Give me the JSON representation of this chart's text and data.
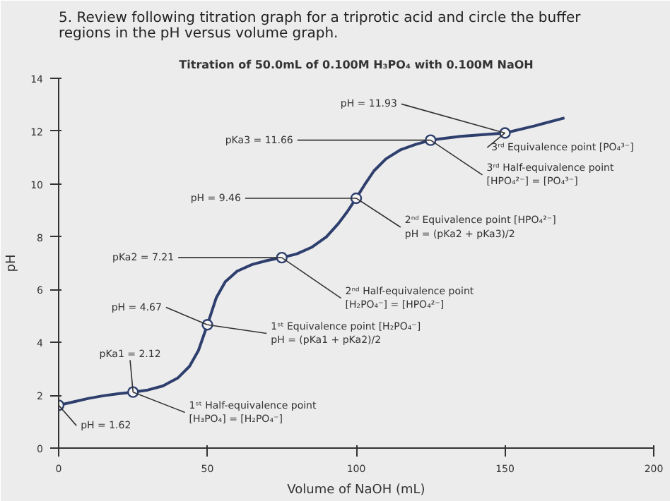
{
  "chart_data": {
    "type": "line",
    "title": "5. Review following titration graph for a triprotic acid and circle the buffer regions in the pH versus volume graph.",
    "subtitle": "Titration of 50.0mL of 0.100M H₃PO₄ with 0.100M NaOH",
    "xlabel": "Volume of NaOH (mL)",
    "ylabel": "pH",
    "xlim": [
      0,
      200
    ],
    "xticks": [
      0,
      50,
      100,
      150,
      200
    ],
    "ylim": [
      0,
      14
    ],
    "yticks": [
      0,
      2,
      4,
      6,
      8,
      10,
      12,
      14
    ],
    "grid": false,
    "series": [
      {
        "type": "line",
        "color": "#2e3f6e",
        "x": [
          0,
          5,
          10,
          15,
          20,
          25,
          30,
          35,
          40,
          44,
          47,
          50,
          53,
          56,
          60,
          65,
          70,
          75,
          80,
          85,
          90,
          94,
          97,
          100,
          103,
          106,
          110,
          115,
          120,
          125,
          135,
          150,
          160,
          170
        ],
        "values": [
          1.62,
          1.75,
          1.88,
          1.98,
          2.06,
          2.12,
          2.2,
          2.35,
          2.65,
          3.1,
          3.7,
          4.67,
          5.7,
          6.3,
          6.7,
          6.95,
          7.1,
          7.21,
          7.35,
          7.6,
          8.0,
          8.5,
          8.95,
          9.46,
          10.0,
          10.5,
          10.95,
          11.3,
          11.5,
          11.66,
          11.8,
          11.93,
          12.2,
          12.5
        ]
      },
      {
        "type": "scatter",
        "marker": "circle",
        "color": "#2e3f6e",
        "x": [
          0,
          25,
          50,
          75,
          100,
          125,
          150
        ],
        "values": [
          1.62,
          2.12,
          4.67,
          7.21,
          9.46,
          11.66,
          11.93
        ]
      }
    ],
    "annotations": [
      {
        "text": "pH = 1.62",
        "x": 0,
        "y": 1.62
      },
      {
        "text": "pKa1 = 2.12",
        "x": 25,
        "y": 2.12
      },
      {
        "text": "pH = 4.67",
        "x": 50,
        "y": 4.67
      },
      {
        "text": "pKa2 = 7.21",
        "x": 75,
        "y": 7.21
      },
      {
        "text": "pH = 9.46",
        "x": 100,
        "y": 9.46
      },
      {
        "text": "pKa3 = 11.66",
        "x": 125,
        "y": 11.66
      },
      {
        "text": "pH = 11.93",
        "x": 150,
        "y": 11.93
      },
      {
        "text": "1ˢᵗ Half-equivalence point\n[H₃PO₄] = [H₂PO₄⁻]",
        "x": 25,
        "y": 2.12
      },
      {
        "text": "1ˢᵗ Equivalence point [H₂PO₄⁻]\npH = (pKa1 + pKa2)/2",
        "x": 50,
        "y": 4.67
      },
      {
        "text": "2ⁿᵈ Half-equivalence point\n[H₂PO₄⁻] = [HPO₄²⁻]",
        "x": 75,
        "y": 7.21
      },
      {
        "text": "2ⁿᵈ Equivalence point [HPO₄²⁻]\npH = (pKa2 + pKa3)/2",
        "x": 100,
        "y": 9.46
      },
      {
        "text": "3ʳᵈ Half-equivalence point\n[HPO₄²⁻] = [PO₄³⁻]",
        "x": 125,
        "y": 11.66
      },
      {
        "text": "3ʳᵈ Equivalence point [PO₄³⁻]",
        "x": 150,
        "y": 11.93
      }
    ]
  }
}
